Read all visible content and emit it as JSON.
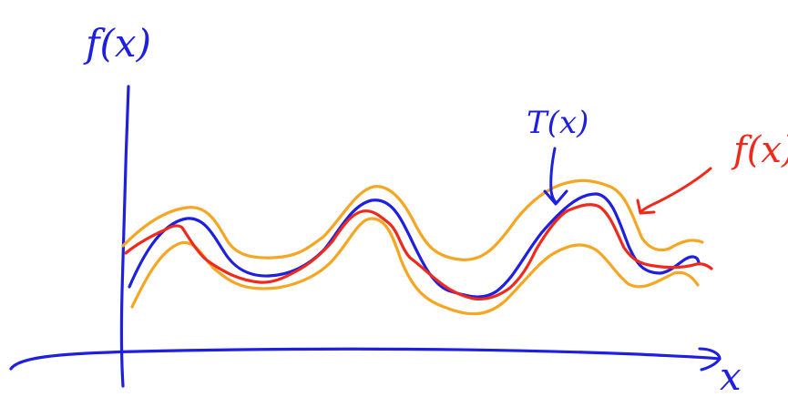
{
  "colors": {
    "axis": "#1f1fe0",
    "true_curve": "#1f1fe0",
    "estimate_curve": "#ef2a1c",
    "band": "#f5a623"
  },
  "labels": {
    "y_axis": "f(x)",
    "x_axis": "x",
    "true_curve": "T(x)",
    "estimate_curve": "f(x)"
  }
}
